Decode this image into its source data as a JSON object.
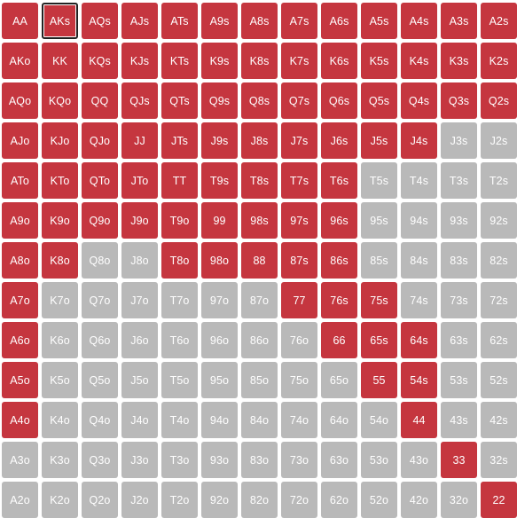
{
  "colors": {
    "raise": "#c5363f",
    "fold": "#b9b9b9",
    "text": "#ffffff",
    "selected_border": "#222222"
  },
  "selected_hand": "AKs",
  "grid": [
    [
      {
        "label": "AA",
        "action": "raise"
      },
      {
        "label": "AKs",
        "action": "raise"
      },
      {
        "label": "AQs",
        "action": "raise"
      },
      {
        "label": "AJs",
        "action": "raise"
      },
      {
        "label": "ATs",
        "action": "raise"
      },
      {
        "label": "A9s",
        "action": "raise"
      },
      {
        "label": "A8s",
        "action": "raise"
      },
      {
        "label": "A7s",
        "action": "raise"
      },
      {
        "label": "A6s",
        "action": "raise"
      },
      {
        "label": "A5s",
        "action": "raise"
      },
      {
        "label": "A4s",
        "action": "raise"
      },
      {
        "label": "A3s",
        "action": "raise"
      },
      {
        "label": "A2s",
        "action": "raise"
      }
    ],
    [
      {
        "label": "AKo",
        "action": "raise"
      },
      {
        "label": "KK",
        "action": "raise"
      },
      {
        "label": "KQs",
        "action": "raise"
      },
      {
        "label": "KJs",
        "action": "raise"
      },
      {
        "label": "KTs",
        "action": "raise"
      },
      {
        "label": "K9s",
        "action": "raise"
      },
      {
        "label": "K8s",
        "action": "raise"
      },
      {
        "label": "K7s",
        "action": "raise"
      },
      {
        "label": "K6s",
        "action": "raise"
      },
      {
        "label": "K5s",
        "action": "raise"
      },
      {
        "label": "K4s",
        "action": "raise"
      },
      {
        "label": "K3s",
        "action": "raise"
      },
      {
        "label": "K2s",
        "action": "raise"
      }
    ],
    [
      {
        "label": "AQo",
        "action": "raise"
      },
      {
        "label": "KQo",
        "action": "raise"
      },
      {
        "label": "QQ",
        "action": "raise"
      },
      {
        "label": "QJs",
        "action": "raise"
      },
      {
        "label": "QTs",
        "action": "raise"
      },
      {
        "label": "Q9s",
        "action": "raise"
      },
      {
        "label": "Q8s",
        "action": "raise"
      },
      {
        "label": "Q7s",
        "action": "raise"
      },
      {
        "label": "Q6s",
        "action": "raise"
      },
      {
        "label": "Q5s",
        "action": "raise"
      },
      {
        "label": "Q4s",
        "action": "raise"
      },
      {
        "label": "Q3s",
        "action": "raise"
      },
      {
        "label": "Q2s",
        "action": "raise"
      }
    ],
    [
      {
        "label": "AJo",
        "action": "raise"
      },
      {
        "label": "KJo",
        "action": "raise"
      },
      {
        "label": "QJo",
        "action": "raise"
      },
      {
        "label": "JJ",
        "action": "raise"
      },
      {
        "label": "JTs",
        "action": "raise"
      },
      {
        "label": "J9s",
        "action": "raise"
      },
      {
        "label": "J8s",
        "action": "raise"
      },
      {
        "label": "J7s",
        "action": "raise"
      },
      {
        "label": "J6s",
        "action": "raise"
      },
      {
        "label": "J5s",
        "action": "raise"
      },
      {
        "label": "J4s",
        "action": "raise"
      },
      {
        "label": "J3s",
        "action": "fold"
      },
      {
        "label": "J2s",
        "action": "fold"
      }
    ],
    [
      {
        "label": "ATo",
        "action": "raise"
      },
      {
        "label": "KTo",
        "action": "raise"
      },
      {
        "label": "QTo",
        "action": "raise"
      },
      {
        "label": "JTo",
        "action": "raise"
      },
      {
        "label": "TT",
        "action": "raise"
      },
      {
        "label": "T9s",
        "action": "raise"
      },
      {
        "label": "T8s",
        "action": "raise"
      },
      {
        "label": "T7s",
        "action": "raise"
      },
      {
        "label": "T6s",
        "action": "raise"
      },
      {
        "label": "T5s",
        "action": "fold"
      },
      {
        "label": "T4s",
        "action": "fold"
      },
      {
        "label": "T3s",
        "action": "fold"
      },
      {
        "label": "T2s",
        "action": "fold"
      }
    ],
    [
      {
        "label": "A9o",
        "action": "raise"
      },
      {
        "label": "K9o",
        "action": "raise"
      },
      {
        "label": "Q9o",
        "action": "raise"
      },
      {
        "label": "J9o",
        "action": "raise"
      },
      {
        "label": "T9o",
        "action": "raise"
      },
      {
        "label": "99",
        "action": "raise"
      },
      {
        "label": "98s",
        "action": "raise"
      },
      {
        "label": "97s",
        "action": "raise"
      },
      {
        "label": "96s",
        "action": "raise"
      },
      {
        "label": "95s",
        "action": "fold"
      },
      {
        "label": "94s",
        "action": "fold"
      },
      {
        "label": "93s",
        "action": "fold"
      },
      {
        "label": "92s",
        "action": "fold"
      }
    ],
    [
      {
        "label": "A8o",
        "action": "raise"
      },
      {
        "label": "K8o",
        "action": "raise"
      },
      {
        "label": "Q8o",
        "action": "fold"
      },
      {
        "label": "J8o",
        "action": "fold"
      },
      {
        "label": "T8o",
        "action": "raise"
      },
      {
        "label": "98o",
        "action": "raise"
      },
      {
        "label": "88",
        "action": "raise"
      },
      {
        "label": "87s",
        "action": "raise"
      },
      {
        "label": "86s",
        "action": "raise"
      },
      {
        "label": "85s",
        "action": "fold"
      },
      {
        "label": "84s",
        "action": "fold"
      },
      {
        "label": "83s",
        "action": "fold"
      },
      {
        "label": "82s",
        "action": "fold"
      }
    ],
    [
      {
        "label": "A7o",
        "action": "raise"
      },
      {
        "label": "K7o",
        "action": "fold"
      },
      {
        "label": "Q7o",
        "action": "fold"
      },
      {
        "label": "J7o",
        "action": "fold"
      },
      {
        "label": "T7o",
        "action": "fold"
      },
      {
        "label": "97o",
        "action": "fold"
      },
      {
        "label": "87o",
        "action": "fold"
      },
      {
        "label": "77",
        "action": "raise"
      },
      {
        "label": "76s",
        "action": "raise"
      },
      {
        "label": "75s",
        "action": "raise"
      },
      {
        "label": "74s",
        "action": "fold"
      },
      {
        "label": "73s",
        "action": "fold"
      },
      {
        "label": "72s",
        "action": "fold"
      }
    ],
    [
      {
        "label": "A6o",
        "action": "raise"
      },
      {
        "label": "K6o",
        "action": "fold"
      },
      {
        "label": "Q6o",
        "action": "fold"
      },
      {
        "label": "J6o",
        "action": "fold"
      },
      {
        "label": "T6o",
        "action": "fold"
      },
      {
        "label": "96o",
        "action": "fold"
      },
      {
        "label": "86o",
        "action": "fold"
      },
      {
        "label": "76o",
        "action": "fold"
      },
      {
        "label": "66",
        "action": "raise"
      },
      {
        "label": "65s",
        "action": "raise"
      },
      {
        "label": "64s",
        "action": "raise"
      },
      {
        "label": "63s",
        "action": "fold"
      },
      {
        "label": "62s",
        "action": "fold"
      }
    ],
    [
      {
        "label": "A5o",
        "action": "raise"
      },
      {
        "label": "K5o",
        "action": "fold"
      },
      {
        "label": "Q5o",
        "action": "fold"
      },
      {
        "label": "J5o",
        "action": "fold"
      },
      {
        "label": "T5o",
        "action": "fold"
      },
      {
        "label": "95o",
        "action": "fold"
      },
      {
        "label": "85o",
        "action": "fold"
      },
      {
        "label": "75o",
        "action": "fold"
      },
      {
        "label": "65o",
        "action": "fold"
      },
      {
        "label": "55",
        "action": "raise"
      },
      {
        "label": "54s",
        "action": "raise"
      },
      {
        "label": "53s",
        "action": "fold"
      },
      {
        "label": "52s",
        "action": "fold"
      }
    ],
    [
      {
        "label": "A4o",
        "action": "raise"
      },
      {
        "label": "K4o",
        "action": "fold"
      },
      {
        "label": "Q4o",
        "action": "fold"
      },
      {
        "label": "J4o",
        "action": "fold"
      },
      {
        "label": "T4o",
        "action": "fold"
      },
      {
        "label": "94o",
        "action": "fold"
      },
      {
        "label": "84o",
        "action": "fold"
      },
      {
        "label": "74o",
        "action": "fold"
      },
      {
        "label": "64o",
        "action": "fold"
      },
      {
        "label": "54o",
        "action": "fold"
      },
      {
        "label": "44",
        "action": "raise"
      },
      {
        "label": "43s",
        "action": "fold"
      },
      {
        "label": "42s",
        "action": "fold"
      }
    ],
    [
      {
        "label": "A3o",
        "action": "fold"
      },
      {
        "label": "K3o",
        "action": "fold"
      },
      {
        "label": "Q3o",
        "action": "fold"
      },
      {
        "label": "J3o",
        "action": "fold"
      },
      {
        "label": "T3o",
        "action": "fold"
      },
      {
        "label": "93o",
        "action": "fold"
      },
      {
        "label": "83o",
        "action": "fold"
      },
      {
        "label": "73o",
        "action": "fold"
      },
      {
        "label": "63o",
        "action": "fold"
      },
      {
        "label": "53o",
        "action": "fold"
      },
      {
        "label": "43o",
        "action": "fold"
      },
      {
        "label": "33",
        "action": "raise"
      },
      {
        "label": "32s",
        "action": "fold"
      }
    ],
    [
      {
        "label": "A2o",
        "action": "fold"
      },
      {
        "label": "K2o",
        "action": "fold"
      },
      {
        "label": "Q2o",
        "action": "fold"
      },
      {
        "label": "J2o",
        "action": "fold"
      },
      {
        "label": "T2o",
        "action": "fold"
      },
      {
        "label": "92o",
        "action": "fold"
      },
      {
        "label": "82o",
        "action": "fold"
      },
      {
        "label": "72o",
        "action": "fold"
      },
      {
        "label": "62o",
        "action": "fold"
      },
      {
        "label": "52o",
        "action": "fold"
      },
      {
        "label": "42o",
        "action": "fold"
      },
      {
        "label": "32o",
        "action": "fold"
      },
      {
        "label": "22",
        "action": "raise"
      }
    ]
  ]
}
